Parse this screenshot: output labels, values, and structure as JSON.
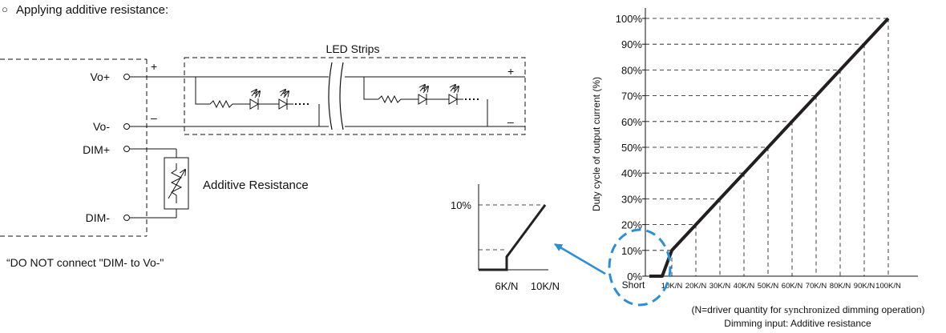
{
  "section": {
    "bullet": "○",
    "title": "Applying additive resistance:"
  },
  "circuit": {
    "terminals": {
      "vo_plus": "Vo+",
      "vo_minus": "Vo-",
      "dim_plus": "DIM+",
      "dim_minus": "DIM-"
    },
    "driver_signs": {
      "plus": "+",
      "minus": "–"
    },
    "led_strips_label": "LED Strips",
    "strip_signs": {
      "plus": "+",
      "minus": "–"
    },
    "resistor_label": "Additive Resistance",
    "warning": "“DO NOT connect \"DIM- to Vo-\""
  },
  "chart_data": [
    {
      "type": "line",
      "ylabel": "Duty cycle of output current (%)",
      "xlabel": "Dimming input: Additive resistance",
      "xnote_prefix": "(N=driver quantity for ",
      "xnote_serif": "synchronized",
      "xnote_suffix": " dimming operation)",
      "x_start_label": "Short",
      "x_ticks": [
        "10K/N",
        "20K/N",
        "30K/N",
        "40K/N",
        "50K/N",
        "60K/N",
        "70K/N",
        "80K/N",
        "90K/N",
        "100K/N"
      ],
      "y_ticks": [
        "0%",
        "10%",
        "20%",
        "30%",
        "40%",
        "50%",
        "60%",
        "70%",
        "80%",
        "90%",
        "100%"
      ],
      "x_units": "K/N",
      "points": [
        [
          0,
          0
        ],
        [
          6,
          0
        ],
        [
          10,
          10
        ],
        [
          20,
          20
        ],
        [
          30,
          30
        ],
        [
          40,
          40
        ],
        [
          50,
          50
        ],
        [
          60,
          60
        ],
        [
          70,
          70
        ],
        [
          80,
          80
        ],
        [
          90,
          90
        ],
        [
          100,
          100
        ]
      ],
      "xlim": [
        -2,
        110
      ],
      "ylim": [
        0,
        100
      ],
      "grid": "dashed-drop-lines"
    },
    {
      "type": "line",
      "title": "inset-zoom",
      "y_label": "10%",
      "x_labels": [
        "6K/N",
        "10K/N"
      ],
      "points": [
        [
          0,
          0
        ],
        [
          6,
          0
        ],
        [
          6,
          2
        ],
        [
          10,
          10
        ]
      ]
    }
  ]
}
